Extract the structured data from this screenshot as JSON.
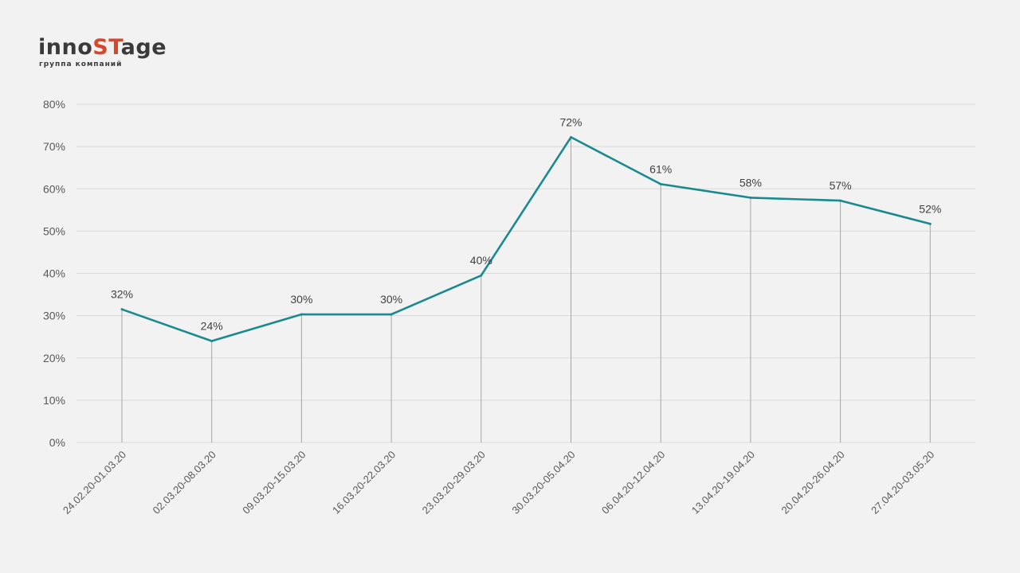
{
  "brand": {
    "logo_text_before": "inno",
    "logo_text_accent": "ST",
    "logo_text_after": "age",
    "tagline": "группа компаний",
    "accent_color": "#d9472b",
    "text_color": "#3a3a3a"
  },
  "chart_data": {
    "type": "line",
    "title": "",
    "xlabel": "",
    "ylabel": "",
    "ylim": [
      0,
      80
    ],
    "y_ticks": [
      "0%",
      "10%",
      "20%",
      "30%",
      "40%",
      "50%",
      "60%",
      "70%",
      "80%"
    ],
    "y_tick_values": [
      0,
      10,
      20,
      30,
      40,
      50,
      60,
      70,
      80
    ],
    "grid": true,
    "legend": "none",
    "line_color": "#1a8a8e",
    "categories": [
      "24.02.20-01.03.20",
      "02.03.20-08.03.20",
      "09.03.20-15.03.20",
      "16.03.20-22.03.20",
      "23.03.20-29.03.20",
      "30.03.20-05.04.20",
      "06.04.20-12.04.20",
      "13.04.20-19.04.20",
      "20.04.20-26.04.20",
      "27.04.20-03.05.20"
    ],
    "values": [
      31.5,
      24,
      30.3,
      30.3,
      39.5,
      72.2,
      61.1,
      57.9,
      57.2,
      51.7
    ],
    "data_labels": [
      "32%",
      "24%",
      "30%",
      "30%",
      "40%",
      "72%",
      "61%",
      "58%",
      "57%",
      "52%"
    ]
  }
}
